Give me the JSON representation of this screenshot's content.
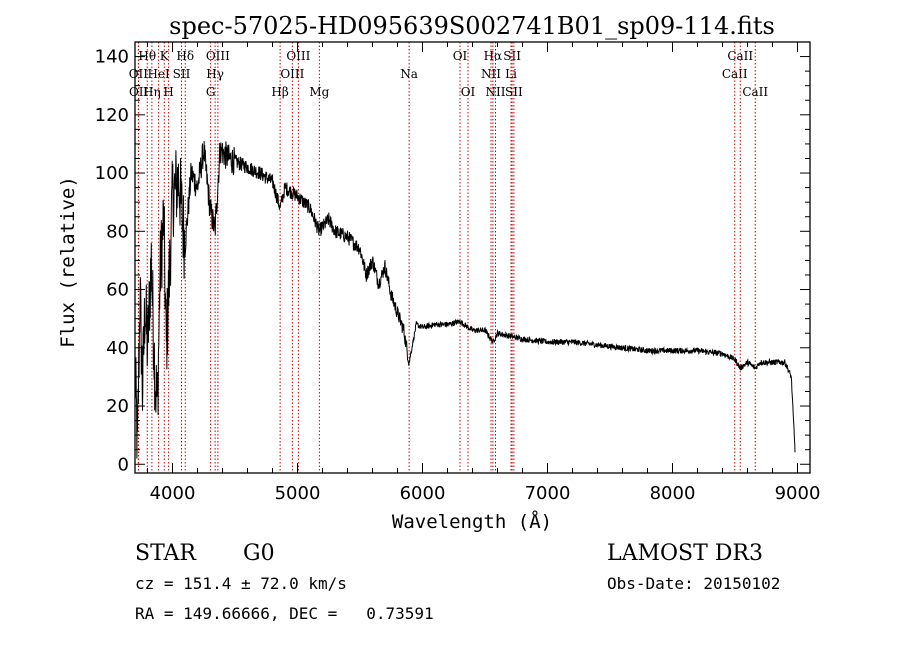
{
  "chart_data": {
    "type": "line",
    "title": "spec-57025-HD095639S002741B01_sp09-114.fits",
    "xlabel": "Wavelength (Å)",
    "ylabel": "Flux (relative)",
    "xlim": [
      3700,
      9100
    ],
    "ylim": [
      -3,
      145
    ],
    "xticks": [
      4000,
      5000,
      6000,
      7000,
      8000,
      9000
    ],
    "xtick_labels": [
      "4000",
      "5000",
      "6000",
      "7000",
      "8000",
      "9000"
    ],
    "yticks": [
      0,
      20,
      40,
      60,
      80,
      100,
      120,
      140
    ],
    "ytick_labels": [
      "0",
      "20",
      "40",
      "60",
      "80",
      "100",
      "120",
      "140"
    ],
    "line_color": "#000000",
    "marker_color": "#cc0000",
    "spectrum_anchors": [
      [
        3700,
        32
      ],
      [
        3720,
        5
      ],
      [
        3740,
        60
      ],
      [
        3760,
        25
      ],
      [
        3780,
        55
      ],
      [
        3800,
        40
      ],
      [
        3830,
        70
      ],
      [
        3860,
        30
      ],
      [
        3880,
        20
      ],
      [
        3900,
        65
      ],
      [
        3930,
        85
      ],
      [
        3950,
        40
      ],
      [
        3970,
        60
      ],
      [
        4000,
        92
      ],
      [
        4050,
        98
      ],
      [
        4100,
        75
      ],
      [
        4150,
        100
      ],
      [
        4200,
        95
      ],
      [
        4250,
        108
      ],
      [
        4300,
        88
      ],
      [
        4340,
        80
      ],
      [
        4380,
        108
      ],
      [
        4450,
        105
      ],
      [
        4500,
        104
      ],
      [
        4600,
        102
      ],
      [
        4700,
        100
      ],
      [
        4800,
        97
      ],
      [
        4861,
        88
      ],
      [
        4900,
        95
      ],
      [
        5000,
        92
      ],
      [
        5100,
        88
      ],
      [
        5172,
        80
      ],
      [
        5250,
        84
      ],
      [
        5300,
        80
      ],
      [
        5400,
        78
      ],
      [
        5500,
        74
      ],
      [
        5550,
        65
      ],
      [
        5600,
        70
      ],
      [
        5650,
        62
      ],
      [
        5700,
        68
      ],
      [
        5750,
        58
      ],
      [
        5800,
        52
      ],
      [
        5850,
        46
      ],
      [
        5893,
        35
      ],
      [
        5950,
        48
      ],
      [
        6000,
        47
      ],
      [
        6100,
        48
      ],
      [
        6200,
        48
      ],
      [
        6300,
        49
      ],
      [
        6400,
        46
      ],
      [
        6500,
        46
      ],
      [
        6563,
        42
      ],
      [
        6600,
        45
      ],
      [
        6700,
        44
      ],
      [
        6800,
        43
      ],
      [
        7000,
        42
      ],
      [
        7200,
        42
      ],
      [
        7400,
        41
      ],
      [
        7600,
        40
      ],
      [
        7800,
        39
      ],
      [
        8000,
        39
      ],
      [
        8200,
        39
      ],
      [
        8400,
        38
      ],
      [
        8500,
        36
      ],
      [
        8542,
        33
      ],
      [
        8600,
        35
      ],
      [
        8662,
        33
      ],
      [
        8700,
        35
      ],
      [
        8800,
        35
      ],
      [
        8900,
        35
      ],
      [
        8950,
        30
      ],
      [
        8980,
        5
      ]
    ],
    "line_markers": [
      {
        "label": "Hθ",
        "wavelength": 3798,
        "row": 0
      },
      {
        "label": "OII",
        "wavelength": 3727,
        "row": 1
      },
      {
        "label": "OII",
        "wavelength": 3729,
        "row": 2
      },
      {
        "label": "Hη",
        "wavelength": 3835,
        "row": 2
      },
      {
        "label": "HeI",
        "wavelength": 3889,
        "row": 1
      },
      {
        "label": "K",
        "wavelength": 3934,
        "row": 0
      },
      {
        "label": "H",
        "wavelength": 3969,
        "row": 2
      },
      {
        "label": "SII",
        "wavelength": 4072,
        "row": 1
      },
      {
        "label": "Hδ",
        "wavelength": 4102,
        "row": 0
      },
      {
        "label": "OIII",
        "wavelength": 4363,
        "row": 0
      },
      {
        "label": "Hγ",
        "wavelength": 4341,
        "row": 1
      },
      {
        "label": "G",
        "wavelength": 4305,
        "row": 2
      },
      {
        "label": "Hβ",
        "wavelength": 4861,
        "row": 2
      },
      {
        "label": "OIII",
        "wavelength": 5007,
        "row": 0
      },
      {
        "label": "OIII",
        "wavelength": 4959,
        "row": 1
      },
      {
        "label": "Mg",
        "wavelength": 5175,
        "row": 2
      },
      {
        "label": "Na",
        "wavelength": 5893,
        "row": 1
      },
      {
        "label": "OI",
        "wavelength": 6300,
        "row": 0
      },
      {
        "label": "OI",
        "wavelength": 6364,
        "row": 2
      },
      {
        "label": "Hα",
        "wavelength": 6563,
        "row": 0
      },
      {
        "label": "NII",
        "wavelength": 6548,
        "row": 1
      },
      {
        "label": "NII",
        "wavelength": 6584,
        "row": 2
      },
      {
        "label": "SII",
        "wavelength": 6717,
        "row": 0
      },
      {
        "label": "Li",
        "wavelength": 6708,
        "row": 1
      },
      {
        "label": "SII",
        "wavelength": 6731,
        "row": 2
      },
      {
        "label": "CaII",
        "wavelength": 8498,
        "row": 1
      },
      {
        "label": "CaII",
        "wavelength": 8542,
        "row": 0
      },
      {
        "label": "CaII",
        "wavelength": 8662,
        "row": 2
      }
    ]
  },
  "info": {
    "object_class": "STAR",
    "subclass": "G0",
    "survey": "LAMOST DR3",
    "cz": "cz = 151.4 ± 72.0 km/s",
    "obs_date": "Obs-Date: 20150102",
    "coords": "RA = 149.66666, DEC =   0.73591"
  }
}
